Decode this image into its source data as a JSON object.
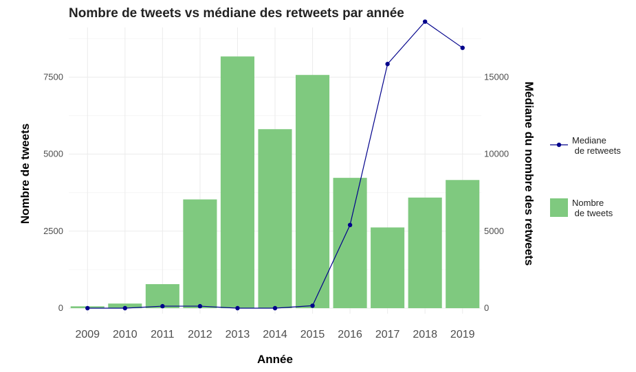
{
  "chart_data": {
    "type": "bar",
    "title": "Nombre de tweets vs médiane des retweets par année",
    "xlabel": "Année",
    "ylabel": "Nombre de tweets",
    "y2label": "Médiane du nombre des retweets",
    "categories": [
      "2009",
      "2010",
      "2011",
      "2012",
      "2013",
      "2014",
      "2015",
      "2016",
      "2017",
      "2018",
      "2019"
    ],
    "ylim": [
      0,
      9000
    ],
    "y2lim": [
      0,
      18000
    ],
    "yticks": [
      0,
      2500,
      5000,
      7500
    ],
    "y2ticks": [
      0,
      5000,
      10000,
      15000
    ],
    "grid": true,
    "legend_position": "right",
    "series": [
      {
        "name": "Nombre\n de tweets",
        "type": "bar",
        "axis": "left",
        "color": "#7fc97f",
        "values": [
          60,
          150,
          780,
          3530,
          8170,
          5810,
          7570,
          4230,
          2620,
          3590,
          4160
        ]
      },
      {
        "name": "Mediane\n de retweets",
        "type": "line",
        "axis": "right",
        "color": "#00008b",
        "values": [
          0,
          0,
          130,
          130,
          0,
          0,
          160,
          5400,
          15850,
          18600,
          16900
        ]
      }
    ]
  }
}
